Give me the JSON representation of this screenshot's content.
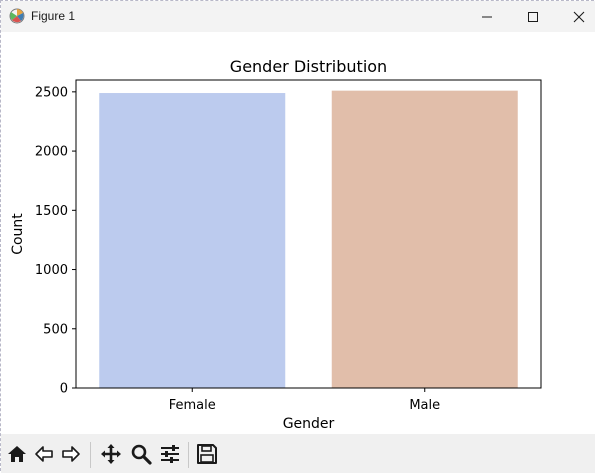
{
  "window": {
    "title": "Figure 1",
    "icons": {
      "app": "matplotlib-figure-icon",
      "minimize": "minimize-icon",
      "maximize": "maximize-icon",
      "close": "close-icon"
    }
  },
  "toolbar": {
    "tools": [
      {
        "name": "home",
        "icon": "home-icon"
      },
      {
        "name": "back",
        "icon": "back-arrow-icon"
      },
      {
        "name": "forward",
        "icon": "forward-arrow-icon"
      },
      {
        "name": "pan",
        "icon": "move-icon"
      },
      {
        "name": "zoom",
        "icon": "zoom-icon"
      },
      {
        "name": "configure-subplots",
        "icon": "sliders-icon"
      },
      {
        "name": "save",
        "icon": "save-icon"
      }
    ]
  },
  "chart_data": {
    "type": "bar",
    "title": "Gender Distribution",
    "xlabel": "Gender",
    "ylabel": "Count",
    "categories": [
      "Female",
      "Male"
    ],
    "values": [
      2490,
      2510
    ],
    "ylim": [
      0,
      2600
    ],
    "yticks": [
      0,
      500,
      1000,
      1500,
      2000,
      2500
    ],
    "colors": [
      "#bccbee",
      "#e1beaa"
    ],
    "grid": false
  }
}
